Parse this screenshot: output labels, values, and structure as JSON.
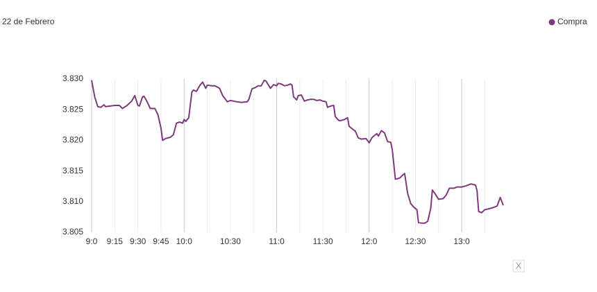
{
  "chart_data": {
    "type": "line",
    "title": "22 de Febrero",
    "x": [
      540,
      542,
      544,
      546,
      548,
      549,
      552,
      555,
      558,
      560,
      563,
      566,
      568,
      570,
      571,
      573,
      574,
      576,
      578,
      581,
      583,
      585,
      586,
      588,
      591,
      593,
      595,
      597,
      599,
      600,
      601,
      603,
      605,
      606,
      608,
      610,
      612,
      614,
      615,
      618,
      620,
      623,
      625,
      628,
      630,
      634,
      637,
      641,
      642,
      644,
      646,
      648,
      650,
      652,
      653,
      655,
      656,
      658,
      660,
      661,
      663,
      665,
      667,
      669,
      670,
      671,
      673,
      674,
      676,
      678,
      680,
      682,
      684,
      686,
      688,
      690,
      692,
      693,
      695,
      697,
      698,
      700,
      701,
      704,
      706,
      707,
      709,
      711,
      713,
      715,
      718,
      720,
      722,
      724,
      725,
      726,
      728,
      730,
      732,
      734,
      735,
      737,
      738,
      740,
      742,
      743,
      745,
      747,
      749,
      751,
      752,
      754,
      756,
      758,
      760,
      761,
      763,
      765,
      768,
      770,
      772,
      774,
      775,
      777,
      780,
      783,
      786,
      789,
      790,
      791,
      793,
      795,
      797,
      800,
      803,
      805,
      807
    ],
    "series": [
      {
        "name": "Compra",
        "color": "#7b3b7b",
        "values": [
          3.8298,
          3.8271,
          3.8255,
          3.8254,
          3.8258,
          3.8255,
          3.8256,
          3.8257,
          3.8257,
          3.8252,
          3.8257,
          3.8264,
          3.8273,
          3.8257,
          3.8256,
          3.8271,
          3.8272,
          3.8263,
          3.8252,
          3.8252,
          3.8242,
          3.822,
          3.82,
          3.8203,
          3.8205,
          3.8209,
          3.8228,
          3.823,
          3.8228,
          3.8234,
          3.8231,
          3.8237,
          3.8279,
          3.8282,
          3.828,
          3.8289,
          3.8295,
          3.8285,
          3.829,
          3.8289,
          3.8289,
          3.8285,
          3.8273,
          3.8263,
          3.8265,
          3.8263,
          3.8262,
          3.8263,
          3.8267,
          3.8284,
          3.8286,
          3.8289,
          3.8289,
          3.8298,
          3.8297,
          3.8289,
          3.8285,
          3.8291,
          3.8289,
          3.8293,
          3.8292,
          3.8289,
          3.829,
          3.8292,
          3.829,
          3.8271,
          3.8266,
          3.8273,
          3.8274,
          3.8264,
          3.8266,
          3.8267,
          3.8267,
          3.8265,
          3.8266,
          3.8264,
          3.8263,
          3.8254,
          3.8256,
          3.8257,
          3.8239,
          3.8233,
          3.8232,
          3.8234,
          3.8237,
          3.8223,
          3.8219,
          3.8215,
          3.8204,
          3.8202,
          3.8203,
          3.8196,
          3.8205,
          3.8209,
          3.8211,
          3.8207,
          3.8216,
          3.8212,
          3.8198,
          3.8197,
          3.8185,
          3.8137,
          3.8137,
          3.8139,
          3.8144,
          3.8146,
          3.8113,
          3.8097,
          3.8091,
          3.8087,
          3.8066,
          3.8065,
          3.8065,
          3.8068,
          3.809,
          3.8119,
          3.8112,
          3.8104,
          3.8105,
          3.8111,
          3.8122,
          3.8122,
          3.8122,
          3.8124,
          3.8124,
          3.8126,
          3.8129,
          3.8127,
          3.8118,
          3.8084,
          3.8082,
          3.8087,
          3.8088,
          3.809,
          3.8093,
          3.8107,
          3.8094
        ]
      }
    ],
    "xlim": [
      540,
      807
    ],
    "xticks": [
      {
        "value": 540,
        "label": "9:0"
      },
      {
        "value": 555,
        "label": "9:15"
      },
      {
        "value": 570,
        "label": "9:30"
      },
      {
        "value": 585,
        "label": "9:45"
      },
      {
        "value": 600,
        "label": "10:0"
      },
      {
        "value": 615,
        "label": null
      },
      {
        "value": 630,
        "label": "10:30"
      },
      {
        "value": 645,
        "label": null
      },
      {
        "value": 660,
        "label": "11:0"
      },
      {
        "value": 675,
        "label": null
      },
      {
        "value": 690,
        "label": "11:30"
      },
      {
        "value": 705,
        "label": null
      },
      {
        "value": 720,
        "label": "12:0"
      },
      {
        "value": 735,
        "label": null
      },
      {
        "value": 750,
        "label": "12:30"
      },
      {
        "value": 765,
        "label": null
      },
      {
        "value": 780,
        "label": "13:0"
      },
      {
        "value": 795,
        "label": null
      }
    ],
    "ylim": [
      3.805,
      3.83
    ],
    "yticks": [
      {
        "value": 3.805,
        "label": "3.805"
      },
      {
        "value": 3.81,
        "label": "3.810"
      },
      3.815,
      {
        "value": 3.82,
        "label": "3.820"
      },
      3.825,
      {
        "value": 3.83,
        "label": "3.830"
      }
    ],
    "grid": true,
    "legend": "top-right",
    "close_label": "X"
  }
}
